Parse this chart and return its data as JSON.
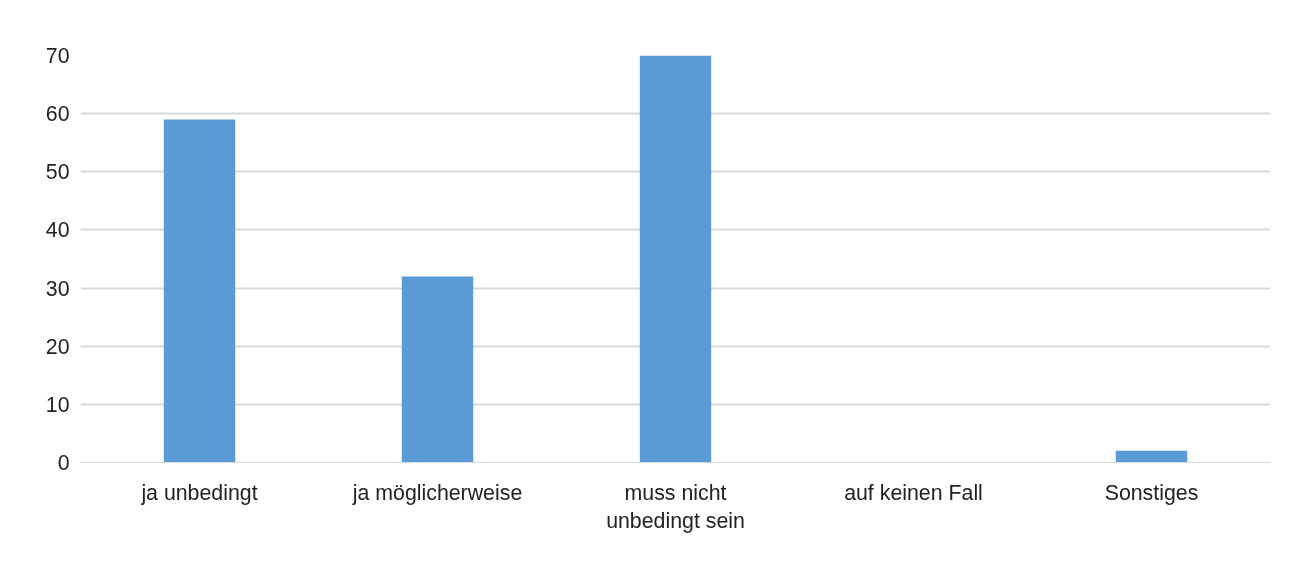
{
  "chart_data": {
    "type": "bar",
    "categories": [
      "ja unbedingt",
      "ja möglicherweise",
      "muss nicht unbedingt sein",
      "auf keinen Fall",
      "Sonstiges"
    ],
    "values": [
      59,
      32,
      70,
      0,
      2
    ],
    "color": "#5b9bd5",
    "ylim": [
      0,
      70
    ],
    "yticks": [
      0,
      10,
      20,
      30,
      40,
      50,
      60,
      70
    ],
    "grid": "y"
  }
}
